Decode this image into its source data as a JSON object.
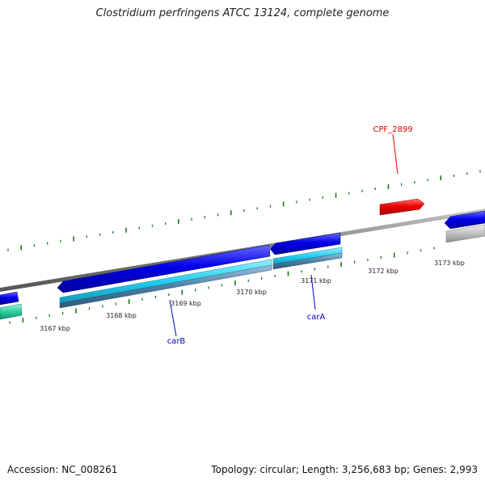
{
  "title": "Clostridium perfringens ATCC 13124, complete genome",
  "footer": {
    "accession": "Accession: NC_008261",
    "summary": "Topology: circular; Length: 3,256,683 bp; Genes: 2,993"
  },
  "ticks": [
    {
      "label": "3167 kbp"
    },
    {
      "label": "3168 kbp"
    },
    {
      "label": "3169 kbp"
    },
    {
      "label": "3170 kbp"
    },
    {
      "label": "3171 kbp"
    },
    {
      "label": "3172 kbp"
    },
    {
      "label": "3173 kbp"
    }
  ],
  "gene_labels": [
    {
      "name": "CPF_2899",
      "color": "#e00000"
    },
    {
      "name": "carB",
      "color": "#0000c0"
    },
    {
      "name": "carA",
      "color": "#0000c0"
    }
  ],
  "colors": {
    "backbone": "#808080",
    "gc_ticks": "#1a7a1a",
    "cds_forward": "#0000e0",
    "cds_reverse": "#e00000",
    "gene_feature": "#22ccee",
    "gene_feature_dark": "#4a80a8",
    "other_feature": "#bbbbbb",
    "teal_feature": "#2ad1a0"
  }
}
